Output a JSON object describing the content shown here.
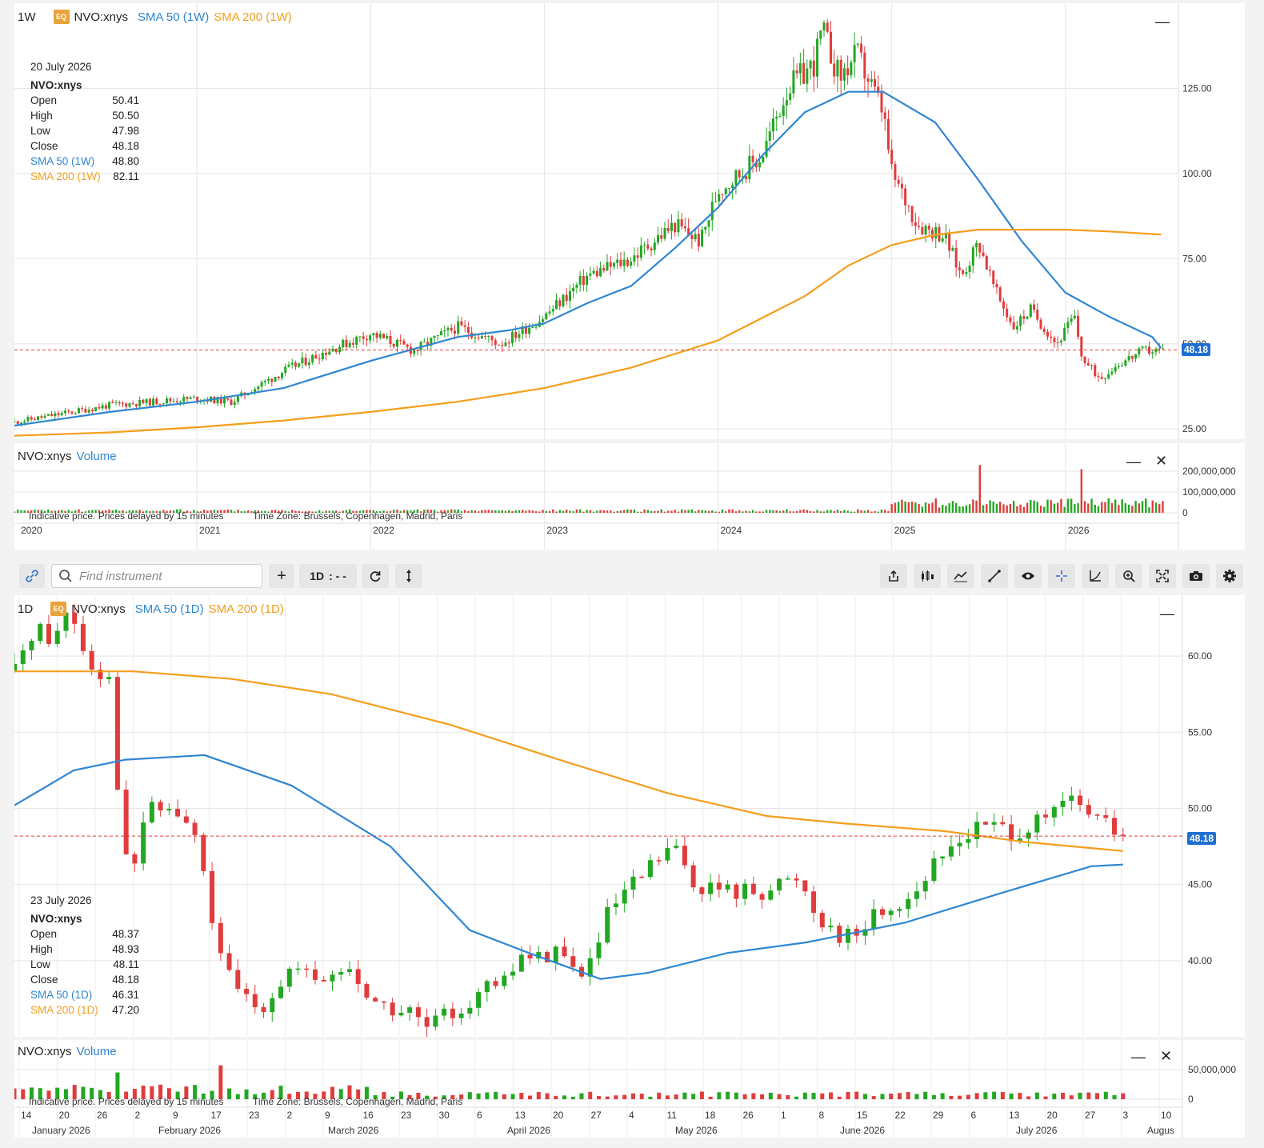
{
  "top": {
    "interval": "1W",
    "badge": "EQ",
    "symbol": "NVO:xnys",
    "sma50_label": "SMA 50 (1W)",
    "sma200_label": "SMA 200 (1W)",
    "info": {
      "date": "20 July 2026",
      "symbol": "NVO:xnys",
      "open_label": "Open",
      "open": "50.41",
      "high_label": "High",
      "high": "50.50",
      "low_label": "Low",
      "low": "47.98",
      "close_label": "Close",
      "close": "48.18",
      "sma50_label": "SMA 50 (1W)",
      "sma50": "48.80",
      "sma200_label": "SMA 200 (1W)",
      "sma200": "82.11"
    },
    "last_price": "48.18",
    "y_ticks": [
      "125.00",
      "100.00",
      "75.00",
      "50.00",
      "25.00"
    ],
    "volume": {
      "symbol": "NVO:xnys",
      "label": "Volume",
      "ticks": [
        "200,000,000",
        "100,000,000",
        "0"
      ]
    },
    "note": "Indicative price. Prices delayed by 15 minutes",
    "timezone": "Time Zone: Brussels, Copenhagen, Madrid, Paris",
    "x_ticks": [
      "2020",
      "2021",
      "2022",
      "2023",
      "2024",
      "2025",
      "2026"
    ]
  },
  "toolbar": {
    "search_placeholder": "Find instrument",
    "plus": "+",
    "interval": "1D",
    "icons": [
      "link-icon",
      "search-icon",
      "refresh-icon",
      "updown-icon",
      "share-icon",
      "candles-icon",
      "indicator-icon",
      "draw-line-icon",
      "eye-icon",
      "crosshair-icon",
      "curve-icon",
      "zoom-icon",
      "fullscreen-icon",
      "camera-icon",
      "gear-icon"
    ]
  },
  "bottom": {
    "interval": "1D",
    "badge": "EQ",
    "symbol": "NVO:xnys",
    "sma50_label": "SMA 50 (1D)",
    "sma200_label": "SMA 200 (1D)",
    "info": {
      "date": "23 July 2026",
      "symbol": "NVO:xnys",
      "open_label": "Open",
      "open": "48.37",
      "high_label": "High",
      "high": "48.93",
      "low_label": "Low",
      "low": "48.11",
      "close_label": "Close",
      "close": "48.18",
      "sma50_label": "SMA 50 (1D)",
      "sma50": "46.31",
      "sma200_label": "SMA 200 (1D)",
      "sma200": "47.20"
    },
    "last_price": "48.18",
    "y_ticks": [
      "60.00",
      "55.00",
      "50.00",
      "45.00",
      "40.00"
    ],
    "volume": {
      "symbol": "NVO:xnys",
      "label": "Volume",
      "ticks": [
        "50,000,000",
        "0"
      ]
    },
    "note": "Indicative price. Prices delayed by 15 minutes",
    "timezone": "Time Zone: Brussels, Copenhagen, Madrid, Paris",
    "x_days": [
      "14",
      "20",
      "26",
      "2",
      "9",
      "17",
      "23",
      "2",
      "9",
      "16",
      "23",
      "30",
      "6",
      "13",
      "20",
      "27",
      "4",
      "11",
      "18",
      "26",
      "1",
      "8",
      "15",
      "22",
      "29",
      "6",
      "13",
      "20",
      "27",
      "3",
      "10"
    ],
    "x_months": [
      "January 2026",
      "February 2026",
      "March 2026",
      "April 2026",
      "May 2026",
      "June 2026",
      "July 2026",
      "Augus"
    ]
  },
  "colors": {
    "up": "#22a722",
    "down": "#e03c3c",
    "sma50": "#2f86d2",
    "sma200": "#f59e1b",
    "price_line": "#e03c3c",
    "price_box": "#1f6fd0"
  },
  "chart_data": [
    {
      "type": "candlestick",
      "title": "NVO:xnys 1W",
      "x_range": [
        "2020",
        "2026-07"
      ],
      "ylim": [
        22,
        150
      ],
      "series": [
        {
          "name": "SMA 50 (1W)",
          "points": [
            [
              2019.95,
              26
            ],
            [
              2020.5,
              30
            ],
            [
              2021.0,
              33
            ],
            [
              2021.5,
              37
            ],
            [
              2022.0,
              45
            ],
            [
              2022.5,
              52
            ],
            [
              2022.8,
              54
            ],
            [
              2023.0,
              56
            ],
            [
              2023.25,
              62
            ],
            [
              2023.5,
              67
            ],
            [
              2023.75,
              78
            ],
            [
              2024.0,
              90
            ],
            [
              2024.25,
              105
            ],
            [
              2024.5,
              118
            ],
            [
              2024.75,
              124
            ],
            [
              2024.95,
              124
            ],
            [
              2025.25,
              115
            ],
            [
              2025.5,
              98
            ],
            [
              2025.75,
              80
            ],
            [
              2026.0,
              65
            ],
            [
              2026.25,
              58
            ],
            [
              2026.5,
              52
            ],
            [
              2026.55,
              48.8
            ]
          ]
        },
        {
          "name": "SMA 200 (1W)",
          "points": [
            [
              2019.95,
              23
            ],
            [
              2020.5,
              24
            ],
            [
              2021.0,
              25.5
            ],
            [
              2021.5,
              27.5
            ],
            [
              2022.0,
              30
            ],
            [
              2022.5,
              33
            ],
            [
              2023.0,
              37
            ],
            [
              2023.5,
              43
            ],
            [
              2024.0,
              51
            ],
            [
              2024.5,
              64
            ],
            [
              2024.75,
              73
            ],
            [
              2025.0,
              79
            ],
            [
              2025.25,
              82
            ],
            [
              2025.5,
              83.5
            ],
            [
              2025.75,
              83.5
            ],
            [
              2026.0,
              83.5
            ],
            [
              2026.25,
              83
            ],
            [
              2026.55,
              82.1
            ]
          ]
        }
      ],
      "price_path": [
        [
          2019.95,
          27
        ],
        [
          2020.5,
          32
        ],
        [
          2021.0,
          34
        ],
        [
          2021.2,
          33
        ],
        [
          2021.5,
          42
        ],
        [
          2021.75,
          48
        ],
        [
          2022.0,
          53
        ],
        [
          2022.25,
          48
        ],
        [
          2022.5,
          55
        ],
        [
          2022.75,
          50
        ],
        [
          2023.0,
          58
        ],
        [
          2023.25,
          70
        ],
        [
          2023.5,
          75
        ],
        [
          2023.75,
          85
        ],
        [
          2023.9,
          80
        ],
        [
          2024.0,
          95
        ],
        [
          2024.25,
          105
        ],
        [
          2024.4,
          125
        ],
        [
          2024.55,
          132
        ],
        [
          2024.6,
          142
        ],
        [
          2024.7,
          128
        ],
        [
          2024.8,
          135
        ],
        [
          2024.95,
          118
        ],
        [
          2025.0,
          100
        ],
        [
          2025.15,
          85
        ],
        [
          2025.3,
          82
        ],
        [
          2025.4,
          70
        ],
        [
          2025.5,
          80
        ],
        [
          2025.6,
          65
        ],
        [
          2025.7,
          55
        ],
        [
          2025.8,
          60
        ],
        [
          2025.95,
          50
        ],
        [
          2026.05,
          58
        ],
        [
          2026.1,
          45
        ],
        [
          2026.2,
          40
        ],
        [
          2026.3,
          44
        ],
        [
          2026.45,
          48
        ],
        [
          2026.55,
          48.18
        ]
      ],
      "volume_ylim": [
        0,
        250000000
      ],
      "volume_spikes": [
        [
          2025.5,
          230000000
        ],
        [
          2026.1,
          210000000
        ]
      ]
    },
    {
      "type": "candlestick",
      "title": "NVO:xnys 1D",
      "x_range": [
        "2026-01-14",
        "2026-08-10"
      ],
      "ylim": [
        35,
        64
      ],
      "series": [
        {
          "name": "SMA 50 (1D)",
          "points": [
            [
              0,
              50.2
            ],
            [
              15,
              52.5
            ],
            [
              28,
              53.2
            ],
            [
              48,
              53.5
            ],
            [
              70,
              51.5
            ],
            [
              95,
              47.5
            ],
            [
              115,
              42
            ],
            [
              130,
              40.5
            ],
            [
              148,
              38.8
            ],
            [
              160,
              39.2
            ],
            [
              180,
              40.5
            ],
            [
              200,
              41.2
            ],
            [
              225,
              42.5
            ],
            [
              250,
              44.5
            ],
            [
              272,
              46.2
            ],
            [
              280,
              46.31
            ]
          ]
        },
        {
          "name": "SMA 200 (1D)",
          "points": [
            [
              0,
              59
            ],
            [
              30,
              59
            ],
            [
              55,
              58.5
            ],
            [
              80,
              57.5
            ],
            [
              110,
              55.5
            ],
            [
              140,
              53
            ],
            [
              165,
              51
            ],
            [
              190,
              49.5
            ],
            [
              210,
              49
            ],
            [
              235,
              48.5
            ],
            [
              255,
              47.8
            ],
            [
              280,
              47.2
            ]
          ]
        }
      ],
      "price_path": [
        [
          0,
          59
        ],
        [
          5,
          62
        ],
        [
          10,
          61
        ],
        [
          14,
          63.5
        ],
        [
          18,
          60
        ],
        [
          24,
          58.5
        ],
        [
          26,
          52
        ],
        [
          29,
          44.5
        ],
        [
          33,
          49.8
        ],
        [
          40,
          50
        ],
        [
          46,
          48
        ],
        [
          52,
          40
        ],
        [
          56,
          38
        ],
        [
          62,
          37
        ],
        [
          70,
          39.5
        ],
        [
          76,
          38.5
        ],
        [
          84,
          39.5
        ],
        [
          92,
          37
        ],
        [
          100,
          36.5
        ],
        [
          104,
          35.5
        ],
        [
          110,
          36.5
        ],
        [
          118,
          38
        ],
        [
          124,
          38.5
        ],
        [
          128,
          40.5
        ],
        [
          132,
          40
        ],
        [
          137,
          41
        ],
        [
          142,
          39
        ],
        [
          146,
          40
        ],
        [
          150,
          43
        ],
        [
          155,
          44.5
        ],
        [
          162,
          46.5
        ],
        [
          166,
          47.5
        ],
        [
          172,
          45
        ],
        [
          180,
          44.5
        ],
        [
          190,
          44.7
        ],
        [
          198,
          45.5
        ],
        [
          203,
          43
        ],
        [
          207,
          42
        ],
        [
          212,
          41.5
        ],
        [
          217,
          43
        ],
        [
          225,
          44
        ],
        [
          232,
          46
        ],
        [
          238,
          48
        ],
        [
          246,
          49
        ],
        [
          252,
          48.5
        ],
        [
          260,
          49
        ],
        [
          266,
          50.5
        ],
        [
          270,
          50
        ],
        [
          275,
          49
        ],
        [
          280,
          48.18
        ]
      ],
      "volume_ylim": [
        0,
        70000000
      ],
      "volume_spikes": [
        [
          26,
          45000000
        ],
        [
          52,
          57000000
        ]
      ]
    }
  ]
}
